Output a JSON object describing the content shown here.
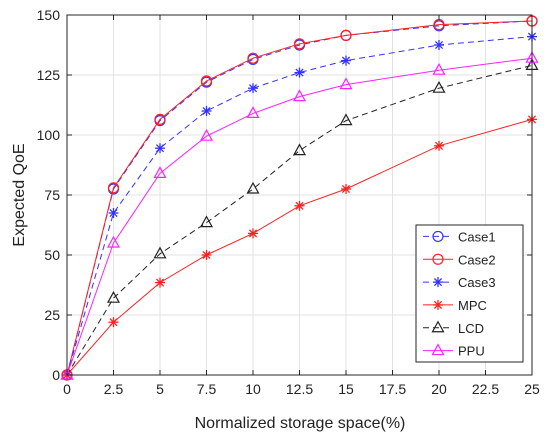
{
  "chart_data": {
    "type": "line",
    "title": "",
    "xlabel": "Normalized storage space(%)",
    "ylabel": "Expected QoE",
    "xlim": [
      0,
      25
    ],
    "ylim": [
      0,
      150
    ],
    "xticks": [
      "0",
      "2.5",
      "5",
      "7.5",
      "10",
      "12.5",
      "15",
      "17.5",
      "20",
      "22.5",
      "25"
    ],
    "yticks": [
      "0",
      "25",
      "50",
      "75",
      "100",
      "125",
      "150"
    ],
    "grid": true,
    "legend_position": "bottom-right",
    "x": [
      0,
      2.5,
      5,
      7.5,
      10,
      12.5,
      15,
      20,
      25
    ],
    "series": [
      {
        "name": "Case1",
        "color": "#3333ff",
        "dash": "dashed",
        "marker": "circle",
        "values": [
          0,
          77.5,
          106,
          122,
          131.5,
          137.5,
          141.5,
          145.5,
          147.5
        ]
      },
      {
        "name": "Case2",
        "color": "#ff2020",
        "dash": "solid",
        "marker": "circle",
        "values": [
          0,
          78,
          106.5,
          122.5,
          132,
          138,
          141.5,
          146,
          147.5
        ]
      },
      {
        "name": "Case3",
        "color": "#3333ff",
        "dash": "dashed",
        "marker": "asterisk",
        "values": [
          0,
          67.5,
          94.5,
          110,
          119.5,
          126,
          131,
          137.5,
          141
        ]
      },
      {
        "name": "MPC",
        "color": "#ff2020",
        "dash": "solid",
        "marker": "asterisk",
        "values": [
          0,
          22,
          38.5,
          50,
          59,
          70.5,
          77.5,
          95.5,
          106.5
        ]
      },
      {
        "name": "LCD",
        "color": "#222222",
        "dash": "dashed",
        "marker": "triangle",
        "values": [
          0,
          32,
          50.5,
          63.5,
          77.5,
          93.5,
          106,
          119.5,
          129
        ]
      },
      {
        "name": "PPU",
        "color": "#ff22ff",
        "dash": "solid",
        "marker": "triangle",
        "values": [
          0,
          55,
          84,
          99.5,
          109,
          116,
          121,
          127,
          132
        ]
      }
    ]
  }
}
